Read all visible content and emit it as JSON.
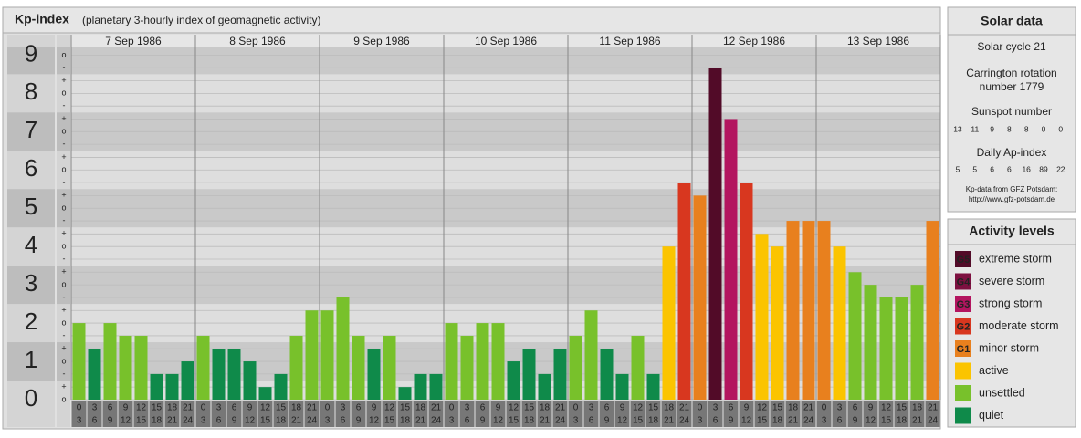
{
  "title": "Kp-index",
  "subtitle": "(planetary 3-hourly index of geomagnetic activity)",
  "chart_data": {
    "type": "bar",
    "ylim": [
      0,
      9.2
    ],
    "yticks": [
      0,
      1,
      2,
      3,
      4,
      5,
      6,
      7,
      8,
      9
    ],
    "minor_yticks": [
      {
        "value": 0,
        "label": "o"
      },
      {
        "value": 0.33,
        "label": "+"
      },
      {
        "value": 0.67,
        "label": "-"
      },
      {
        "value": 1,
        "label": "o"
      },
      {
        "value": 1.33,
        "label": "+"
      },
      {
        "value": 1.67,
        "label": "-"
      },
      {
        "value": 2,
        "label": "o"
      },
      {
        "value": 2.33,
        "label": "+"
      },
      {
        "value": 2.67,
        "label": "-"
      },
      {
        "value": 3,
        "label": "o"
      },
      {
        "value": 3.33,
        "label": "+"
      },
      {
        "value": 3.67,
        "label": "-"
      },
      {
        "value": 4,
        "label": "o"
      },
      {
        "value": 4.33,
        "label": "+"
      },
      {
        "value": 4.67,
        "label": "-"
      },
      {
        "value": 5,
        "label": "o"
      },
      {
        "value": 5.33,
        "label": "+"
      },
      {
        "value": 5.67,
        "label": "-"
      },
      {
        "value": 6,
        "label": "o"
      },
      {
        "value": 6.33,
        "label": "+"
      },
      {
        "value": 6.67,
        "label": "-"
      },
      {
        "value": 7,
        "label": "o"
      },
      {
        "value": 7.33,
        "label": "+"
      },
      {
        "value": 7.67,
        "label": "-"
      },
      {
        "value": 8,
        "label": "o"
      },
      {
        "value": 8.33,
        "label": "+"
      },
      {
        "value": 8.67,
        "label": "-"
      },
      {
        "value": 9,
        "label": "o"
      }
    ],
    "intervals": [
      {
        "start": "0",
        "end": "3"
      },
      {
        "start": "3",
        "end": "6"
      },
      {
        "start": "6",
        "end": "9"
      },
      {
        "start": "9",
        "end": "12"
      },
      {
        "start": "12",
        "end": "15"
      },
      {
        "start": "15",
        "end": "18"
      },
      {
        "start": "18",
        "end": "21"
      },
      {
        "start": "21",
        "end": "24"
      }
    ],
    "days": [
      {
        "date": "7 Sep 1986",
        "values": [
          2,
          1.33,
          2,
          1.67,
          1.67,
          0.67,
          0.67,
          1
        ],
        "colors": [
          "#78c12b",
          "#0f8a4a",
          "#78c12b",
          "#78c12b",
          "#78c12b",
          "#0f8a4a",
          "#0f8a4a",
          "#0f8a4a"
        ]
      },
      {
        "date": "8 Sep 1986",
        "values": [
          1.67,
          1.33,
          1.33,
          1,
          0.33,
          0.67,
          1.67,
          2.33
        ],
        "colors": [
          "#78c12b",
          "#0f8a4a",
          "#0f8a4a",
          "#0f8a4a",
          "#0f8a4a",
          "#0f8a4a",
          "#78c12b",
          "#78c12b"
        ]
      },
      {
        "date": "9 Sep 1986",
        "values": [
          2.33,
          2.67,
          1.67,
          1.33,
          1.67,
          0.33,
          0.67,
          0.67
        ],
        "colors": [
          "#78c12b",
          "#78c12b",
          "#78c12b",
          "#0f8a4a",
          "#78c12b",
          "#0f8a4a",
          "#0f8a4a",
          "#0f8a4a"
        ]
      },
      {
        "date": "10 Sep 1986",
        "values": [
          2,
          1.67,
          2,
          2,
          1,
          1.33,
          0.67,
          1.33
        ],
        "colors": [
          "#78c12b",
          "#78c12b",
          "#78c12b",
          "#78c12b",
          "#0f8a4a",
          "#0f8a4a",
          "#0f8a4a",
          "#0f8a4a"
        ]
      },
      {
        "date": "11 Sep 1986",
        "values": [
          1.67,
          2.33,
          1.33,
          0.67,
          1.67,
          0.67,
          4,
          5.67
        ],
        "colors": [
          "#78c12b",
          "#78c12b",
          "#0f8a4a",
          "#0f8a4a",
          "#78c12b",
          "#0f8a4a",
          "#fbc400",
          "#d8371f"
        ]
      },
      {
        "date": "12 Sep 1986",
        "values": [
          5.33,
          8.67,
          7.33,
          5.67,
          4.33,
          4,
          4.67,
          4.67
        ],
        "colors": [
          "#e8801e",
          "#520b28",
          "#b3155f",
          "#d8371f",
          "#fbc400",
          "#fbc400",
          "#e8801e",
          "#e8801e"
        ]
      },
      {
        "date": "13 Sep 1986",
        "values": [
          4.67,
          4,
          3.33,
          3,
          2.67,
          2.67,
          3,
          4.67
        ],
        "colors": [
          "#e8801e",
          "#fbc400",
          "#78c12b",
          "#78c12b",
          "#78c12b",
          "#78c12b",
          "#78c12b",
          "#e8801e"
        ]
      }
    ]
  },
  "solar_data": {
    "title": "Solar data",
    "cycle": "Solar cycle 21",
    "rotation": [
      "Carrington rotation",
      "number 1779"
    ],
    "sunspot_title": "Sunspot number",
    "sunspot": [
      13,
      11,
      9,
      8,
      8,
      0,
      0
    ],
    "ap_title": "Daily Ap-index",
    "ap": [
      5,
      5,
      6,
      6,
      16,
      89,
      22
    ],
    "source": [
      "Kp-data from GFZ Potsdam:",
      "http://www.gfz-potsdam.de"
    ]
  },
  "activity_levels": {
    "title": "Activity levels",
    "items": [
      {
        "badge": "G5",
        "label": "extreme storm",
        "color": "#520b28"
      },
      {
        "badge": "G4",
        "label": "severe storm",
        "color": "#7d1040"
      },
      {
        "badge": "G3",
        "label": "strong storm",
        "color": "#b3155f"
      },
      {
        "badge": "G2",
        "label": "moderate storm",
        "color": "#d8371f"
      },
      {
        "badge": "G1",
        "label": "minor storm",
        "color": "#e8801e"
      },
      {
        "label": "active",
        "color": "#fbc400"
      },
      {
        "label": "unsettled",
        "color": "#78c12b"
      },
      {
        "label": "quiet",
        "color": "#0f8a4a"
      }
    ]
  }
}
